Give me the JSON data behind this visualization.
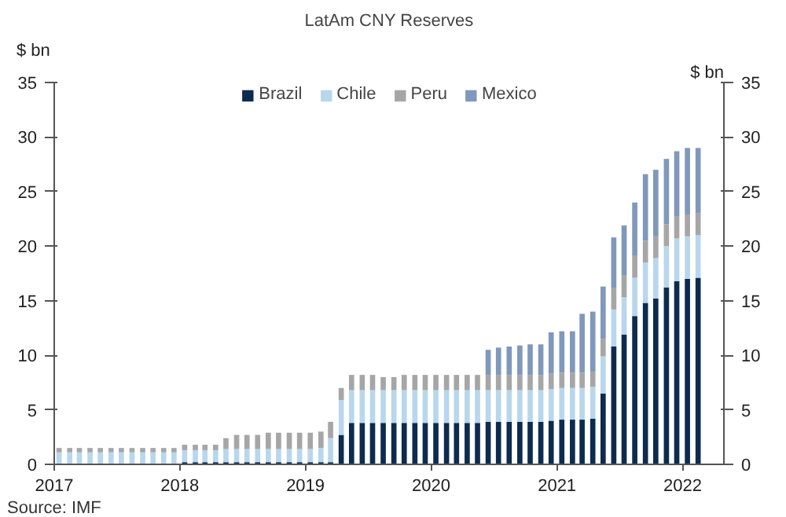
{
  "chart_data": {
    "type": "bar",
    "stacked": true,
    "title": "LatAm CNY Reserves",
    "ylabel": "$ bn",
    "y2label": "$ bn",
    "x": [
      "2017-01-15",
      "2017-02-15",
      "2017-03-15",
      "2017-04-15",
      "2017-05-15",
      "2017-06-15",
      "2017-07-15",
      "2017-08-15",
      "2017-09-15",
      "2017-10-15",
      "2017-11-15",
      "2017-12-15",
      "2018-01-15",
      "2018-02-15",
      "2018-03-15",
      "2018-04-15",
      "2018-05-15",
      "2018-06-15",
      "2018-07-15",
      "2018-08-15",
      "2018-09-15",
      "2018-10-15",
      "2018-11-15",
      "2018-12-15",
      "2019-01-15",
      "2019-02-15",
      "2019-03-15",
      "2019-04-15",
      "2019-05-15",
      "2019-06-15",
      "2019-07-15",
      "2019-08-15",
      "2019-09-15",
      "2019-10-15",
      "2019-11-15",
      "2019-12-15",
      "2020-01-15",
      "2020-02-15",
      "2020-03-15",
      "2020-04-15",
      "2020-05-15",
      "2020-06-15",
      "2020-07-15",
      "2020-08-15",
      "2020-09-15",
      "2020-10-15",
      "2020-11-15",
      "2020-12-15",
      "2021-01-15",
      "2021-02-15",
      "2021-03-15",
      "2021-04-15",
      "2021-05-15",
      "2021-06-15",
      "2021-07-15",
      "2021-08-15",
      "2021-09-15",
      "2021-10-15",
      "2021-11-15",
      "2021-12-15",
      "2022-01-15",
      "2022-02-15"
    ],
    "series": [
      {
        "name": "Brazil",
        "color": "#0d2b4e",
        "values": [
          0,
          0,
          0,
          0,
          0,
          0,
          0,
          0,
          0,
          0,
          0,
          0,
          0.2,
          0.2,
          0.2,
          0.2,
          0.2,
          0.2,
          0.2,
          0.2,
          0.2,
          0.2,
          0.2,
          0.2,
          0.2,
          0.2,
          0.2,
          2.7,
          3.8,
          3.8,
          3.8,
          3.8,
          3.8,
          3.8,
          3.8,
          3.8,
          3.8,
          3.8,
          3.8,
          3.8,
          3.8,
          3.9,
          3.9,
          3.9,
          3.9,
          3.9,
          3.9,
          4.0,
          4.1,
          4.1,
          4.1,
          4.2,
          6.5,
          10.8,
          11.9,
          13.6,
          14.8,
          15.2,
          16.2,
          16.8,
          17.0,
          17.1
        ]
      },
      {
        "name": "Chile",
        "color": "#b8d7ec",
        "values": [
          1.1,
          1.1,
          1.1,
          1.1,
          1.1,
          1.1,
          1.1,
          1.1,
          1.1,
          1.1,
          1.1,
          1.1,
          1.1,
          1.1,
          1.1,
          1.1,
          1.2,
          1.2,
          1.2,
          1.2,
          1.2,
          1.2,
          1.2,
          1.2,
          1.2,
          1.3,
          2.2,
          3.2,
          3.0,
          3.0,
          3.0,
          3.0,
          3.0,
          3.0,
          3.0,
          3.0,
          3.0,
          3.0,
          3.0,
          3.0,
          3.0,
          2.9,
          2.9,
          2.9,
          2.9,
          2.9,
          2.9,
          2.9,
          2.9,
          2.9,
          2.9,
          2.9,
          3.4,
          3.4,
          3.4,
          3.5,
          3.7,
          3.7,
          3.8,
          3.9,
          3.9,
          3.9
        ]
      },
      {
        "name": "Peru",
        "color": "#a6a6a6",
        "values": [
          0.4,
          0.4,
          0.4,
          0.4,
          0.4,
          0.4,
          0.4,
          0.4,
          0.4,
          0.4,
          0.4,
          0.4,
          0.5,
          0.5,
          0.5,
          0.5,
          1.0,
          1.3,
          1.3,
          1.3,
          1.5,
          1.5,
          1.5,
          1.5,
          1.5,
          1.5,
          1.5,
          1.1,
          1.4,
          1.4,
          1.4,
          1.2,
          1.2,
          1.4,
          1.4,
          1.4,
          1.4,
          1.4,
          1.4,
          1.4,
          1.4,
          1.4,
          1.4,
          1.4,
          1.4,
          1.4,
          1.4,
          1.4,
          1.4,
          1.4,
          1.4,
          1.4,
          1.6,
          2.0,
          2.0,
          2.0,
          2.0,
          2.0,
          2.0,
          2.0,
          2.0,
          2.0
        ]
      },
      {
        "name": "Mexico",
        "color": "#7f98bb",
        "values": [
          0,
          0,
          0,
          0,
          0,
          0,
          0,
          0,
          0,
          0,
          0,
          0,
          0,
          0,
          0,
          0,
          0,
          0,
          0,
          0,
          0,
          0,
          0,
          0,
          0,
          0,
          0,
          0,
          0,
          0,
          0,
          0,
          0,
          0,
          0,
          0,
          0,
          0,
          0,
          0,
          0,
          2.3,
          2.5,
          2.6,
          2.7,
          2.8,
          2.8,
          3.8,
          3.8,
          3.8,
          5.4,
          5.5,
          4.8,
          4.6,
          4.6,
          4.9,
          6.1,
          6.1,
          6.0,
          6.0,
          6.1,
          6.0
        ]
      }
    ],
    "xlim": [
      "2017-01",
      "2022-05"
    ],
    "xticks": [
      "2017",
      "2018",
      "2019",
      "2020",
      "2021",
      "2022"
    ],
    "ylim": [
      0,
      35
    ],
    "yticks": [
      0,
      5,
      10,
      15,
      20,
      25,
      30,
      35
    ],
    "y2lim": [
      0,
      35
    ],
    "y2ticks": [
      0,
      5,
      10,
      15,
      20,
      25,
      30,
      35
    ],
    "grid": false,
    "legend": "top",
    "annotations": [
      "Source: IMF"
    ]
  }
}
